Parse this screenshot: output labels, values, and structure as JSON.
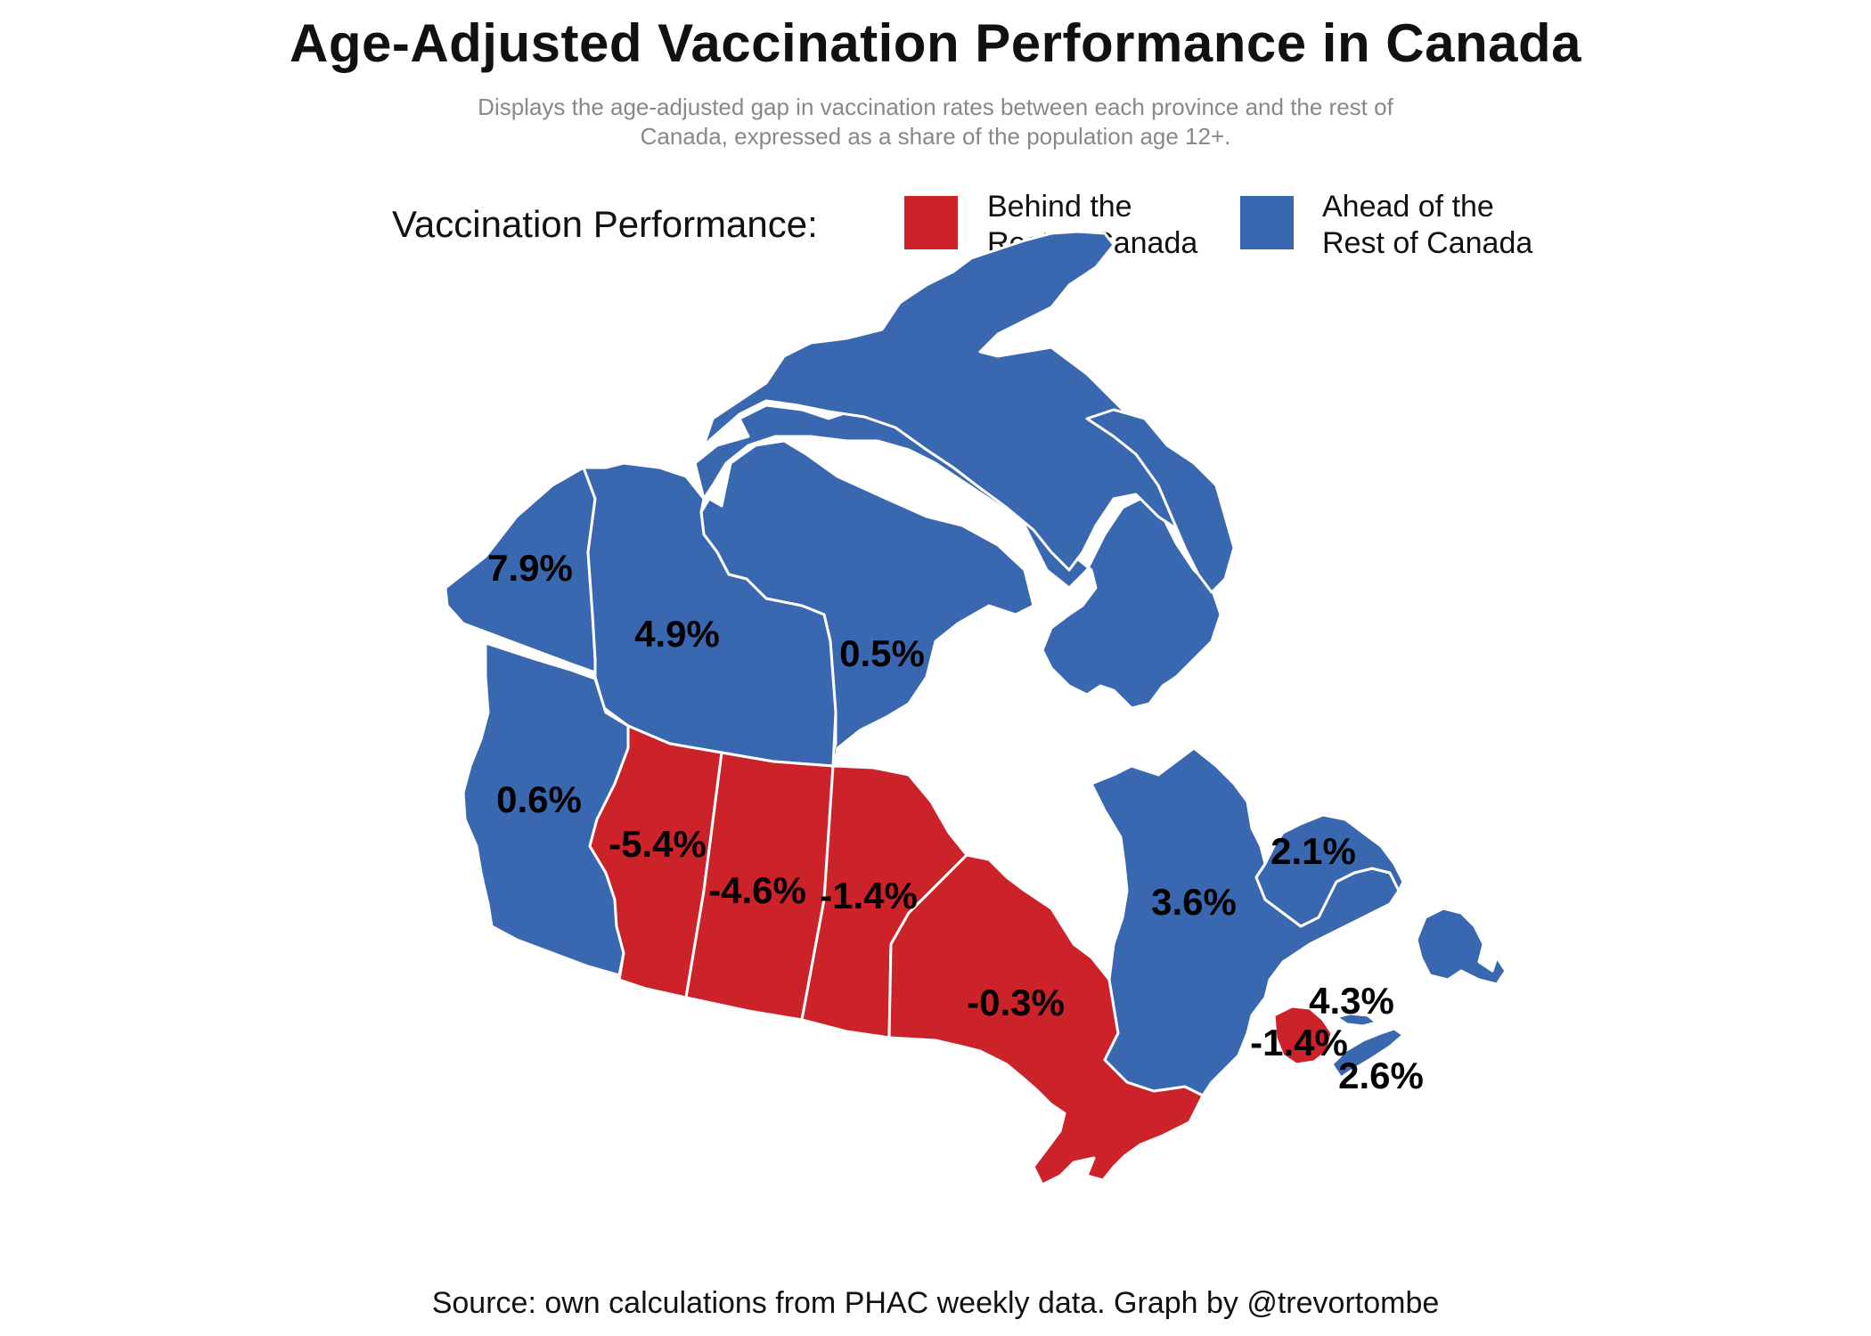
{
  "title": "Age-Adjusted Vaccination Performance in Canada",
  "subtitle_line1": "Displays the age-adjusted gap in vaccination rates between each province and the rest of",
  "subtitle_line2": "Canada, expressed as a share of the population age 12+.",
  "legend": {
    "title": "Vaccination Performance:",
    "behind": {
      "line1": "Behind the",
      "line2": "Rest of Canada",
      "color": "#CC2229"
    },
    "ahead": {
      "line1": "Ahead of the",
      "line2": "Rest of Canada",
      "color": "#3A68B0"
    }
  },
  "regions": [
    {
      "code": "YT",
      "gap": "7.9%",
      "status": "ahead"
    },
    {
      "code": "NT",
      "gap": "4.9%",
      "status": "ahead"
    },
    {
      "code": "NU",
      "gap": "0.5%",
      "status": "ahead"
    },
    {
      "code": "BC",
      "gap": "0.6%",
      "status": "ahead"
    },
    {
      "code": "AB",
      "gap": "-5.4%",
      "status": "behind"
    },
    {
      "code": "SK",
      "gap": "-4.6%",
      "status": "behind"
    },
    {
      "code": "MB",
      "gap": "-1.4%",
      "status": "behind"
    },
    {
      "code": "ON",
      "gap": "-0.3%",
      "status": "behind"
    },
    {
      "code": "QC",
      "gap": "3.6%",
      "status": "ahead"
    },
    {
      "code": "NL",
      "gap": "2.1%",
      "status": "ahead"
    },
    {
      "code": "PE",
      "gap": "4.3%",
      "status": "ahead"
    },
    {
      "code": "NB",
      "gap": "-1.4%",
      "status": "behind"
    },
    {
      "code": "NS",
      "gap": "2.6%",
      "status": "ahead"
    }
  ],
  "source": "Source: own calculations from PHAC weekly data. Graph by @trevortombe"
}
